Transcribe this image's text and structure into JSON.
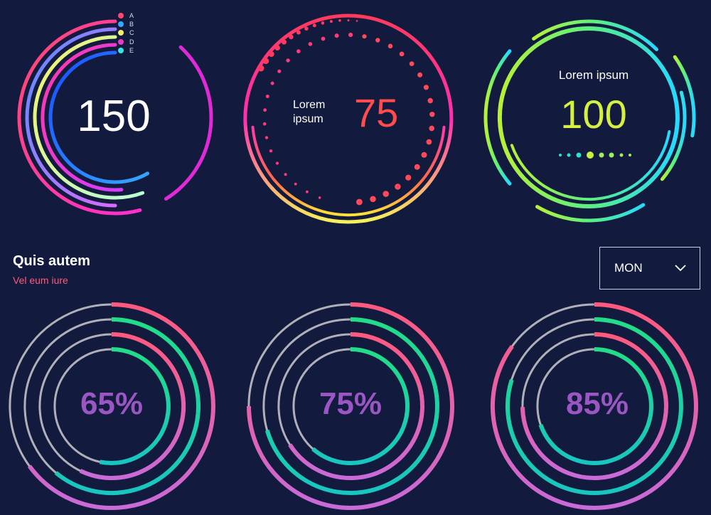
{
  "gauge1": {
    "value": "150",
    "legend": [
      "A",
      "B",
      "C",
      "D",
      "E"
    ],
    "legend_colors": [
      "#ff4a6e",
      "#37a8ff",
      "#f4f06a",
      "#e83cc8",
      "#35e6e6"
    ]
  },
  "gauge2": {
    "label": "Lorem ipsum",
    "value": "75",
    "value_color": "#ff4d4d"
  },
  "gauge3": {
    "label": "Lorem ipsum",
    "value": "100",
    "value_color": "#d4f040"
  },
  "section": {
    "title": "Quis autem",
    "subtitle": "Vel eum iure"
  },
  "day_select": {
    "selected": "MON",
    "icon": "chevron-down-icon"
  },
  "donuts": [
    {
      "label": "65%",
      "value": 65
    },
    {
      "label": "75%",
      "value": 75
    },
    {
      "label": "85%",
      "value": 85
    }
  ],
  "colors": {
    "background": "#121a3d",
    "percent_text": "#9a56c2",
    "track": "#b0b0b8",
    "pink": "#ff5a7e",
    "green": "#22dd88",
    "purple": "#c86ad8"
  }
}
